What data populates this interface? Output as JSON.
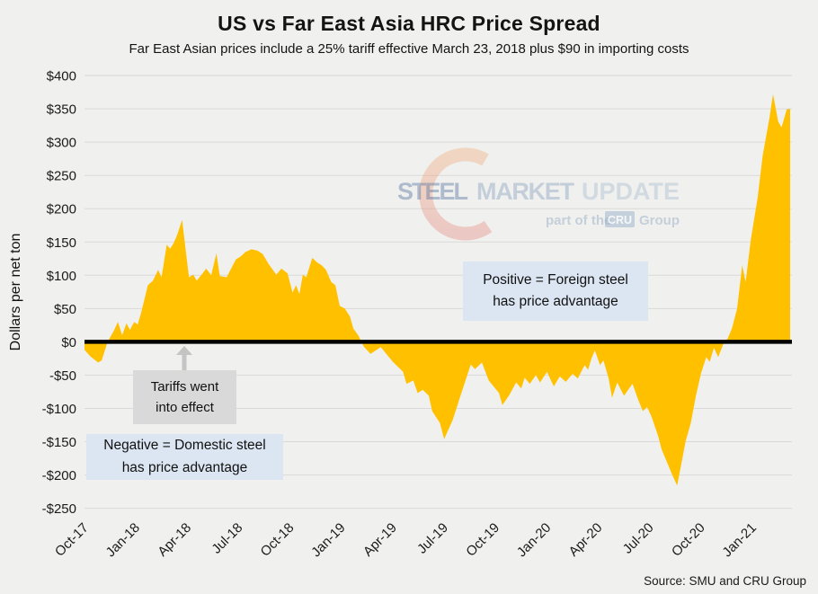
{
  "title": "US vs Far East Asia HRC Price Spread",
  "subtitle": "Far East Asian prices include a 25% tariff effective March 23, 2018 plus $90 in importing costs",
  "source": "Source: SMU and CRU Group",
  "watermark": {
    "steel": "STEEL",
    "market": "MARKET",
    "update": "UPDATE",
    "part_of_the": "part of the",
    "cru": "CRU",
    "group": "Group"
  },
  "annotations": {
    "tariffs": {
      "line1": "Tariffs went",
      "line2": "into effect"
    },
    "negative": {
      "line1": "Negative = Domestic steel",
      "line2": "has price advantage"
    },
    "positive": {
      "line1": "Positive = Foreign steel",
      "line2": "has price advantage"
    }
  },
  "colors": {
    "area": "#FFC000",
    "zero_line": "#000000",
    "gridline": "#D9D9D9",
    "background": "#F0F0EE",
    "note_gray_bg": "#D9D9D9",
    "note_blue_bg": "#DCE6F2",
    "arrow_gray": "#C4C4C4",
    "watermark_red": "#E2766D",
    "watermark_orange": "#F2A16A",
    "watermark_blue": "#8FA8C4"
  },
  "chart_data": {
    "type": "area",
    "title": "US vs Far East Asia HRC Price Spread",
    "subtitle": "Far East Asian prices include a 25% tariff effective March 23, 2018 plus $90 in importing costs",
    "xlabel": "",
    "ylabel": "Dollars per net ton",
    "ylim": [
      -250,
      400
    ],
    "ytick_step": 50,
    "ytick_format": "dollar",
    "grid": true,
    "legend": "none",
    "x_tick_labels": [
      "Oct-17",
      "Jan-18",
      "Apr-18",
      "Jul-18",
      "Oct-18",
      "Jan-19",
      "Apr-19",
      "Jul-19",
      "Oct-19",
      "Jan-20",
      "Apr-20",
      "Jul-20",
      "Oct-20",
      "Jan-21"
    ],
    "x_tick_interval_months": 3,
    "x_domain_months": [
      0,
      41.3
    ],
    "area_color": "#FFC000",
    "zero_line_color": "#000000",
    "gridline_color": "#D9D9D9",
    "series": [
      {
        "name": "US minus Far East Asia HRC price spread",
        "unit": "USD per net ton",
        "x_unit": "months since Oct-2017 (weekly data)",
        "points": [
          [
            0,
            -12
          ],
          [
            0.35,
            -22
          ],
          [
            0.8,
            -31
          ],
          [
            1.0,
            -28
          ],
          [
            1.35,
            0
          ],
          [
            1.7,
            16
          ],
          [
            1.95,
            30
          ],
          [
            2.2,
            10
          ],
          [
            2.45,
            28
          ],
          [
            2.65,
            18
          ],
          [
            2.9,
            30
          ],
          [
            3.1,
            26
          ],
          [
            3.3,
            43
          ],
          [
            3.5,
            64
          ],
          [
            3.7,
            85
          ],
          [
            4.0,
            92
          ],
          [
            4.3,
            108
          ],
          [
            4.5,
            97
          ],
          [
            4.8,
            146
          ],
          [
            5.0,
            140
          ],
          [
            5.2,
            148
          ],
          [
            5.4,
            160
          ],
          [
            5.7,
            183
          ],
          [
            5.9,
            140
          ],
          [
            6.1,
            97
          ],
          [
            6.35,
            101
          ],
          [
            6.55,
            92
          ],
          [
            6.9,
            103
          ],
          [
            7.1,
            110
          ],
          [
            7.4,
            100
          ],
          [
            7.7,
            133
          ],
          [
            7.9,
            99
          ],
          [
            8.3,
            97
          ],
          [
            8.6,
            112
          ],
          [
            8.85,
            124
          ],
          [
            9.1,
            128
          ],
          [
            9.4,
            135
          ],
          [
            9.75,
            139
          ],
          [
            10.1,
            137
          ],
          [
            10.4,
            132
          ],
          [
            10.75,
            117
          ],
          [
            11.2,
            101
          ],
          [
            11.5,
            110
          ],
          [
            11.85,
            103
          ],
          [
            12.15,
            74
          ],
          [
            12.35,
            85
          ],
          [
            12.55,
            72
          ],
          [
            12.75,
            101
          ],
          [
            12.95,
            97
          ],
          [
            13.3,
            126
          ],
          [
            13.6,
            119
          ],
          [
            13.85,
            115
          ],
          [
            14.1,
            108
          ],
          [
            14.4,
            90
          ],
          [
            14.65,
            85
          ],
          [
            14.9,
            54
          ],
          [
            15.2,
            50
          ],
          [
            15.5,
            38
          ],
          [
            15.7,
            20
          ],
          [
            16.0,
            9
          ],
          [
            16.3,
            -7
          ],
          [
            16.7,
            -18
          ],
          [
            17.3,
            -8
          ],
          [
            18.0,
            -30
          ],
          [
            18.6,
            -45
          ],
          [
            18.8,
            -63
          ],
          [
            19.2,
            -58
          ],
          [
            19.45,
            -77
          ],
          [
            19.75,
            -72
          ],
          [
            20.1,
            -81
          ],
          [
            20.3,
            -104
          ],
          [
            20.5,
            -112
          ],
          [
            20.75,
            -122
          ],
          [
            21.0,
            -146
          ],
          [
            21.5,
            -117
          ],
          [
            21.9,
            -85
          ],
          [
            22.55,
            -34
          ],
          [
            22.8,
            -41
          ],
          [
            23.2,
            -31
          ],
          [
            23.6,
            -58
          ],
          [
            24.2,
            -77
          ],
          [
            24.4,
            -95
          ],
          [
            24.8,
            -80
          ],
          [
            25.2,
            -61
          ],
          [
            25.5,
            -70
          ],
          [
            25.7,
            -54
          ],
          [
            26.0,
            -63
          ],
          [
            26.35,
            -50
          ],
          [
            26.6,
            -61
          ],
          [
            27.0,
            -45
          ],
          [
            27.4,
            -67
          ],
          [
            27.75,
            -52
          ],
          [
            28.1,
            -60
          ],
          [
            28.5,
            -48
          ],
          [
            28.8,
            -55
          ],
          [
            29.2,
            -35
          ],
          [
            29.4,
            -42
          ],
          [
            29.6,
            -25
          ],
          [
            29.8,
            -13
          ],
          [
            30.1,
            -35
          ],
          [
            30.3,
            -28
          ],
          [
            30.6,
            -55
          ],
          [
            30.8,
            -84
          ],
          [
            31.1,
            -61
          ],
          [
            31.5,
            -81
          ],
          [
            31.8,
            -70
          ],
          [
            32.0,
            -63
          ],
          [
            32.3,
            -85
          ],
          [
            32.6,
            -104
          ],
          [
            32.85,
            -98
          ],
          [
            33.1,
            -112
          ],
          [
            33.5,
            -142
          ],
          [
            33.7,
            -162
          ],
          [
            34.0,
            -180
          ],
          [
            34.3,
            -199
          ],
          [
            34.6,
            -216
          ],
          [
            35.1,
            -149
          ],
          [
            35.4,
            -122
          ],
          [
            35.7,
            -81
          ],
          [
            36.0,
            -47
          ],
          [
            36.3,
            -23
          ],
          [
            36.5,
            -30
          ],
          [
            36.75,
            -9
          ],
          [
            37.0,
            -23
          ],
          [
            37.3,
            -3
          ],
          [
            37.55,
            5
          ],
          [
            37.8,
            20
          ],
          [
            38.1,
            50
          ],
          [
            38.4,
            115
          ],
          [
            38.6,
            90
          ],
          [
            38.9,
            153
          ],
          [
            39.3,
            216
          ],
          [
            39.6,
            280
          ],
          [
            40.0,
            338
          ],
          [
            40.2,
            372
          ],
          [
            40.5,
            331
          ],
          [
            40.7,
            322
          ],
          [
            41.0,
            349
          ],
          [
            41.2,
            350
          ]
        ]
      }
    ]
  }
}
